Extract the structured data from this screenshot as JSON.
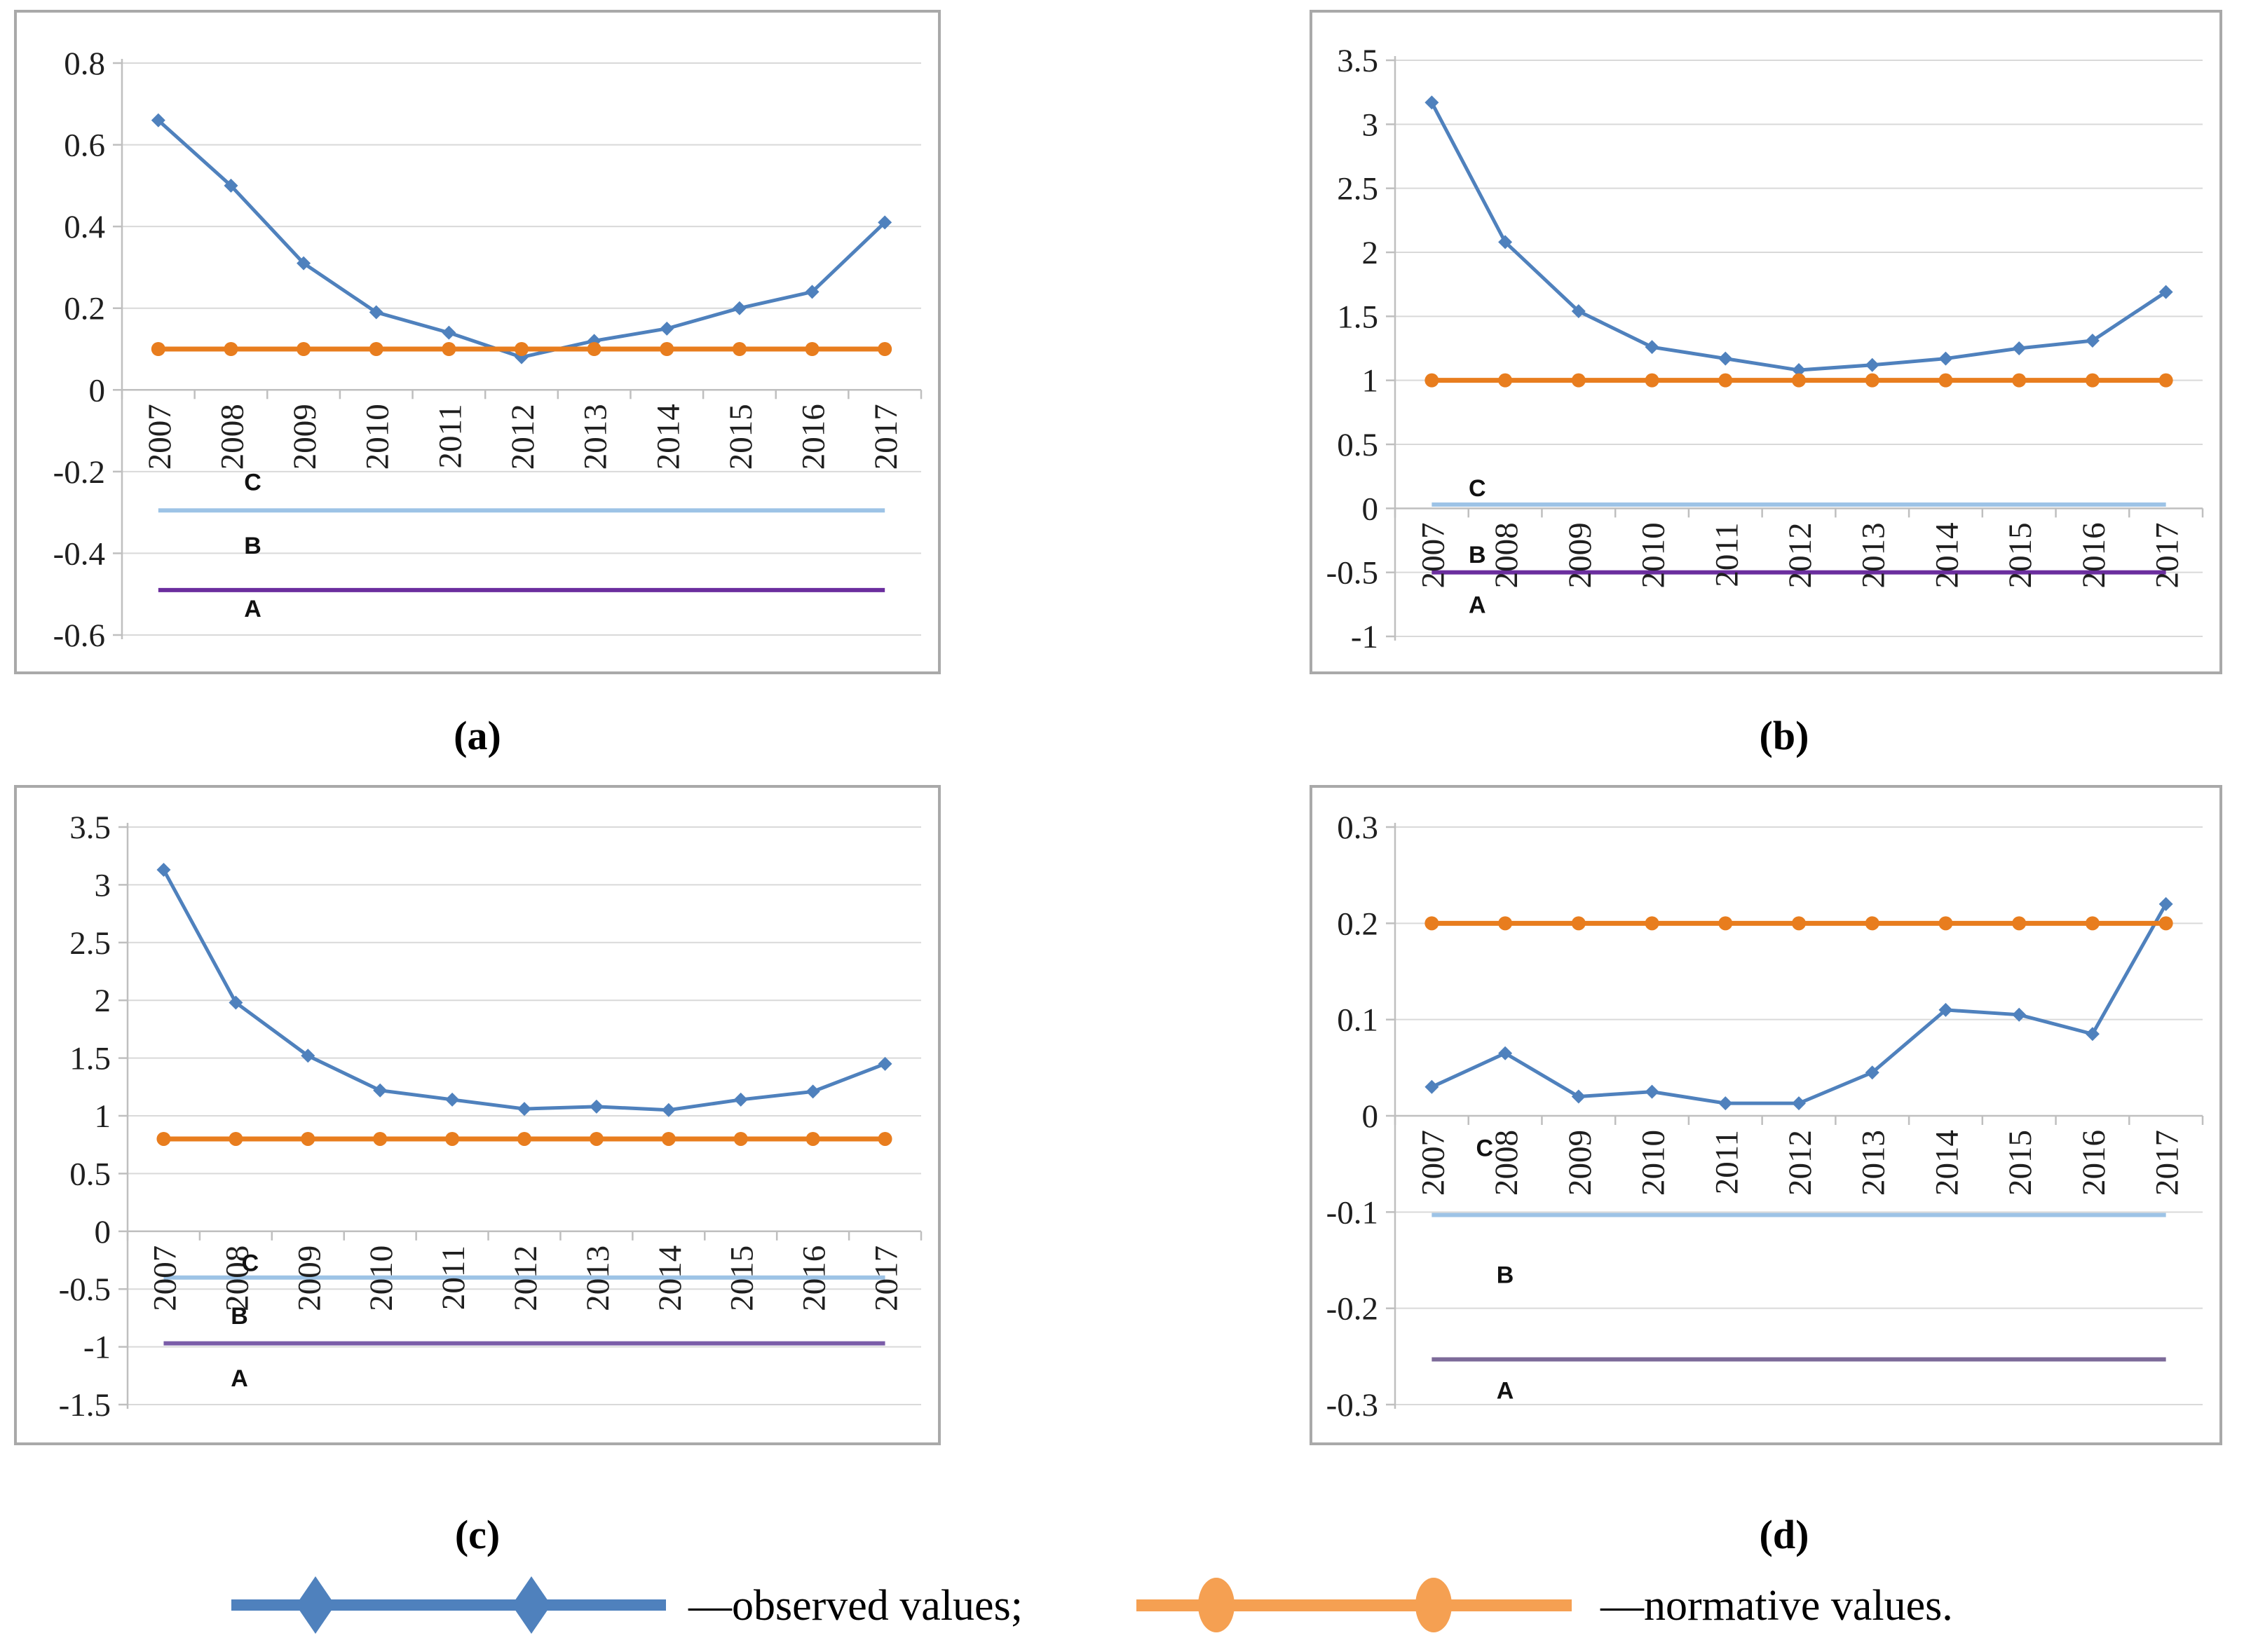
{
  "figure": {
    "captions": {
      "a": "(a)",
      "b": "(b)",
      "c": "(c)",
      "d": "(d)"
    },
    "legend": {
      "observed_label": "—observed values;",
      "normative_label": "—normative values."
    },
    "colors": {
      "observed": "#4F81BD",
      "normative": "#E87D1E",
      "legend_observed": "#4F81BD",
      "legend_normative": "#F5A052",
      "threshold_c": "#9DC3E6",
      "grid": "#D9D9D9",
      "axis": "#BFBFBF",
      "panel_border": "#A9A9A9"
    }
  },
  "chart_data": [
    {
      "id": "a",
      "type": "line",
      "title": "",
      "xlabel": "",
      "ylabel": "",
      "grid": true,
      "legend_position": "none",
      "categories": [
        "2007",
        "2008",
        "2009",
        "2010",
        "2011",
        "2012",
        "2013",
        "2014",
        "2015",
        "2016",
        "2017"
      ],
      "series": [
        {
          "name": "observed values",
          "marker": "diamond",
          "color": "#4F81BD",
          "values": [
            0.66,
            0.5,
            0.31,
            0.19,
            0.14,
            0.08,
            0.12,
            0.15,
            0.2,
            0.24,
            0.41
          ]
        },
        {
          "name": "normative values",
          "marker": "circle",
          "color": "#E87D1E",
          "values": [
            0.1,
            0.1,
            0.1,
            0.1,
            0.1,
            0.1,
            0.1,
            0.1,
            0.1,
            0.1,
            0.1
          ]
        }
      ],
      "threshold_lines": [
        {
          "name": "C",
          "value": -0.295,
          "color": "#9DC3E6"
        },
        {
          "name": "A",
          "value": -0.49,
          "color": "#6B2E9E"
        }
      ],
      "zone_labels": [
        {
          "text": "C",
          "x_index": 1.3,
          "y": -0.225
        },
        {
          "text": "B",
          "x_index": 1.3,
          "y": -0.38
        },
        {
          "text": "A",
          "x_index": 1.3,
          "y": -0.535
        }
      ],
      "ylim": [
        -0.6,
        0.8
      ],
      "ytick_values": [
        0.8,
        0.6,
        0.4,
        0.2,
        0,
        -0.2,
        -0.4,
        -0.6
      ],
      "ytick_labels": [
        "0.8",
        "0.6",
        "0.4",
        "0.2",
        "0",
        "-0.2",
        "-0.4",
        "-0.6"
      ]
    },
    {
      "id": "b",
      "type": "line",
      "title": "",
      "xlabel": "",
      "ylabel": "",
      "grid": true,
      "legend_position": "none",
      "categories": [
        "2007",
        "2008",
        "2009",
        "2010",
        "2011",
        "2012",
        "2013",
        "2014",
        "2015",
        "2016",
        "2017"
      ],
      "series": [
        {
          "name": "observed values",
          "marker": "diamond",
          "color": "#4F81BD",
          "values": [
            3.17,
            2.08,
            1.54,
            1.26,
            1.17,
            1.08,
            1.12,
            1.17,
            1.25,
            1.31,
            1.69
          ]
        },
        {
          "name": "normative values",
          "marker": "circle",
          "color": "#E87D1E",
          "values": [
            1,
            1,
            1,
            1,
            1,
            1,
            1,
            1,
            1,
            1,
            1
          ]
        }
      ],
      "threshold_lines": [
        {
          "name": "C",
          "value": 0.03,
          "color": "#9DC3E6"
        },
        {
          "name": "A",
          "value": -0.5,
          "color": "#6B2E9E"
        }
      ],
      "zone_labels": [
        {
          "text": "C",
          "x_index": 0.62,
          "y": 0.16
        },
        {
          "text": "B",
          "x_index": 0.62,
          "y": -0.36
        },
        {
          "text": "A",
          "x_index": 0.62,
          "y": -0.75
        }
      ],
      "ylim": [
        -1,
        3.5
      ],
      "ytick_values": [
        3.5,
        3,
        2.5,
        2,
        1.5,
        1,
        0.5,
        0,
        -0.5,
        -1
      ],
      "ytick_labels": [
        "3.5",
        "3",
        "2.5",
        "2",
        "1.5",
        "1",
        "0.5",
        "0",
        "-0.5",
        "-1"
      ]
    },
    {
      "id": "c",
      "type": "line",
      "title": "",
      "xlabel": "",
      "ylabel": "",
      "grid": true,
      "legend_position": "none",
      "categories": [
        "2007",
        "2008",
        "2009",
        "2010",
        "2011",
        "2012",
        "2013",
        "2014",
        "2015",
        "2016",
        "2017"
      ],
      "series": [
        {
          "name": "observed values",
          "marker": "diamond",
          "color": "#4F81BD",
          "values": [
            3.13,
            1.98,
            1.52,
            1.22,
            1.14,
            1.06,
            1.08,
            1.05,
            1.14,
            1.21,
            1.45
          ]
        },
        {
          "name": "normative values",
          "marker": "circle",
          "color": "#E87D1E",
          "values": [
            0.8,
            0.8,
            0.8,
            0.8,
            0.8,
            0.8,
            0.8,
            0.8,
            0.8,
            0.8,
            0.8
          ]
        }
      ],
      "threshold_lines": [
        {
          "name": "C",
          "value": -0.4,
          "color": "#9DC3E6"
        },
        {
          "name": "A",
          "value": -0.97,
          "color": "#7A5CA8"
        }
      ],
      "zone_labels": [
        {
          "text": "C",
          "x_index": 1.2,
          "y": -0.27
        },
        {
          "text": "B",
          "x_index": 1.05,
          "y": -0.73
        },
        {
          "text": "A",
          "x_index": 1.05,
          "y": -1.27
        }
      ],
      "ylim": [
        -1.5,
        3.5
      ],
      "ytick_values": [
        3.5,
        3,
        2.5,
        2,
        1.5,
        1,
        0.5,
        0,
        -0.5,
        -1,
        -1.5
      ],
      "ytick_labels": [
        "3.5",
        "3",
        "2.5",
        "2",
        "1.5",
        "1",
        "0.5",
        "0",
        "-0.5",
        "-1",
        "-1.5"
      ]
    },
    {
      "id": "d",
      "type": "line",
      "title": "",
      "xlabel": "",
      "ylabel": "",
      "grid": true,
      "legend_position": "none",
      "categories": [
        "2007",
        "2008",
        "2009",
        "2010",
        "2011",
        "2012",
        "2013",
        "2014",
        "2015",
        "2016",
        "2017"
      ],
      "series": [
        {
          "name": "observed values",
          "marker": "diamond",
          "color": "#4F81BD",
          "values": [
            0.03,
            0.065,
            0.02,
            0.025,
            0.013,
            0.013,
            0.045,
            0.11,
            0.105,
            0.085,
            0.22
          ]
        },
        {
          "name": "normative values",
          "marker": "circle",
          "color": "#E87D1E",
          "values": [
            0.2,
            0.2,
            0.2,
            0.2,
            0.2,
            0.2,
            0.2,
            0.2,
            0.2,
            0.2,
            0.2
          ]
        }
      ],
      "threshold_lines": [
        {
          "name": "C",
          "value": -0.103,
          "color": "#9DC3E6"
        },
        {
          "name": "A",
          "value": -0.253,
          "color": "#7C6A99"
        }
      ],
      "zone_labels": [
        {
          "text": "C",
          "x_index": 0.72,
          "y": -0.033
        },
        {
          "text": "B",
          "x_index": 1.0,
          "y": -0.165
        },
        {
          "text": "A",
          "x_index": 1.0,
          "y": -0.285
        }
      ],
      "ylim": [
        -0.3,
        0.3
      ],
      "ytick_values": [
        0.3,
        0.2,
        0.1,
        0,
        -0.1,
        -0.2,
        -0.3
      ],
      "ytick_labels": [
        "0.3",
        "0.2",
        "0.1",
        "0",
        "-0.1",
        "-0.2",
        "-0.3"
      ]
    }
  ]
}
